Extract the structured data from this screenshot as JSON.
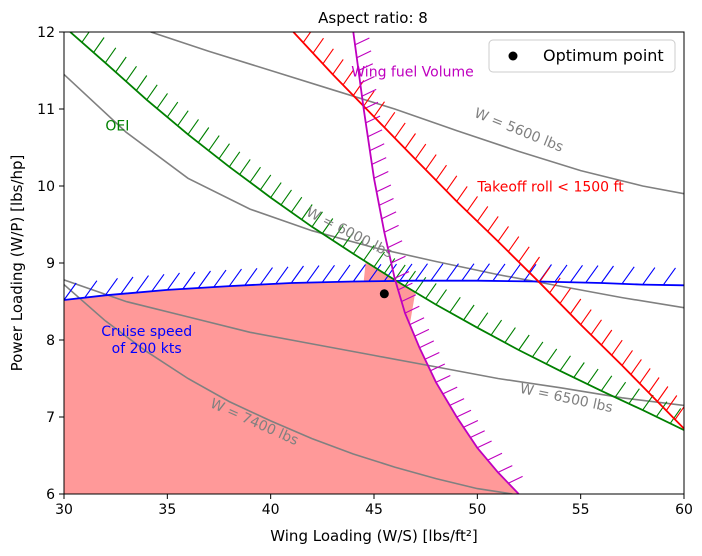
{
  "chart_data": {
    "type": "line",
    "title": "Aspect ratio: 8",
    "xlabel": "Wing Loading (W/S) [lbs/ft²]",
    "ylabel": "Power Loading (W/P) [lbs/hp]",
    "xlim": [
      30,
      60
    ],
    "ylim": [
      6,
      12
    ],
    "xticks": [
      30,
      35,
      40,
      45,
      50,
      55,
      60
    ],
    "yticks": [
      6,
      7,
      8,
      9,
      10,
      11,
      12
    ],
    "xtick_labels": [
      "30",
      "35",
      "40",
      "45",
      "50",
      "55",
      "60"
    ],
    "ytick_labels": [
      "6",
      "7",
      "8",
      "9",
      "10",
      "11",
      "12"
    ],
    "legend": {
      "position": "top-right",
      "entries": [
        "Optimum point"
      ]
    },
    "optimum_point": {
      "x": 45.5,
      "y": 8.6
    },
    "constraints": [
      {
        "name": "Cruise speed of 200 kts",
        "label_line1": "Cruise speed",
        "label_line2": "of 200 kts",
        "color": "#0000ff",
        "x": [
          30,
          32,
          35,
          38,
          41,
          44,
          47,
          50,
          53,
          56,
          58,
          60
        ],
        "y": [
          8.52,
          8.58,
          8.65,
          8.7,
          8.74,
          8.76,
          8.77,
          8.77,
          8.76,
          8.74,
          8.72,
          8.71
        ]
      },
      {
        "name": "OEI",
        "label": "OEI",
        "color": "#008000",
        "x": [
          30.3,
          32,
          34,
          36,
          38,
          40,
          42,
          44,
          46,
          48,
          50,
          52,
          54,
          56,
          58,
          60
        ],
        "y": [
          12.0,
          11.6,
          11.12,
          10.67,
          10.25,
          9.85,
          9.47,
          9.12,
          8.78,
          8.46,
          8.16,
          7.87,
          7.6,
          7.34,
          7.09,
          6.83
        ]
      },
      {
        "name": "Takeoff roll < 1500 ft",
        "label": "Takeoff roll < 1500 ft",
        "color": "#ff0000",
        "x": [
          41.1,
          43,
          45,
          47,
          49,
          51,
          53,
          55,
          57,
          60
        ],
        "y": [
          12.0,
          11.45,
          10.9,
          10.35,
          9.8,
          9.28,
          8.75,
          8.2,
          7.67,
          6.85
        ]
      },
      {
        "name": "Wing fuel Volume",
        "label": "Wing fuel Volume",
        "color": "#bf00bf",
        "x": [
          44.0,
          44.5,
          45.0,
          45.5,
          46.0,
          46.5,
          47.2,
          48.0,
          49.0,
          50.0,
          51.0,
          52.0
        ],
        "y": [
          12.0,
          11.0,
          10.1,
          9.4,
          8.8,
          8.35,
          7.9,
          7.45,
          7.0,
          6.6,
          6.28,
          6.0
        ]
      }
    ],
    "weight_curves": [
      {
        "name": "W = 5600 lbs",
        "label": "W = 5600 lbs",
        "x": [
          34.2,
          37,
          40,
          43,
          46,
          49,
          52,
          55,
          58,
          60
        ],
        "y": [
          12.0,
          11.75,
          11.5,
          11.25,
          11.0,
          10.72,
          10.45,
          10.2,
          10.0,
          9.9
        ]
      },
      {
        "name": "W = 6000 lbs",
        "label": "W = 6000 lbs",
        "x": [
          30,
          33,
          36,
          39,
          42,
          45,
          48,
          51,
          54,
          57,
          60
        ],
        "y": [
          11.45,
          10.7,
          10.1,
          9.7,
          9.42,
          9.2,
          9.02,
          8.85,
          8.7,
          8.55,
          8.42
        ]
      },
      {
        "name": "W = 6500 lbs",
        "label": "W = 6500 lbs",
        "x": [
          30,
          33,
          36,
          39,
          42,
          45,
          48,
          51,
          54,
          57,
          60
        ],
        "y": [
          8.78,
          8.5,
          8.3,
          8.1,
          7.95,
          7.8,
          7.65,
          7.5,
          7.38,
          7.25,
          7.15
        ]
      },
      {
        "name": "W = 7400 lbs",
        "label": "W = 7400 lbs",
        "x": [
          30,
          32,
          34,
          36,
          38,
          40,
          42,
          44,
          46,
          48,
          50,
          51.7
        ],
        "y": [
          8.72,
          8.25,
          7.85,
          7.5,
          7.2,
          6.95,
          6.72,
          6.52,
          6.35,
          6.2,
          6.07,
          6.0
        ]
      }
    ],
    "feasible_region_color": "#ff9999"
  }
}
